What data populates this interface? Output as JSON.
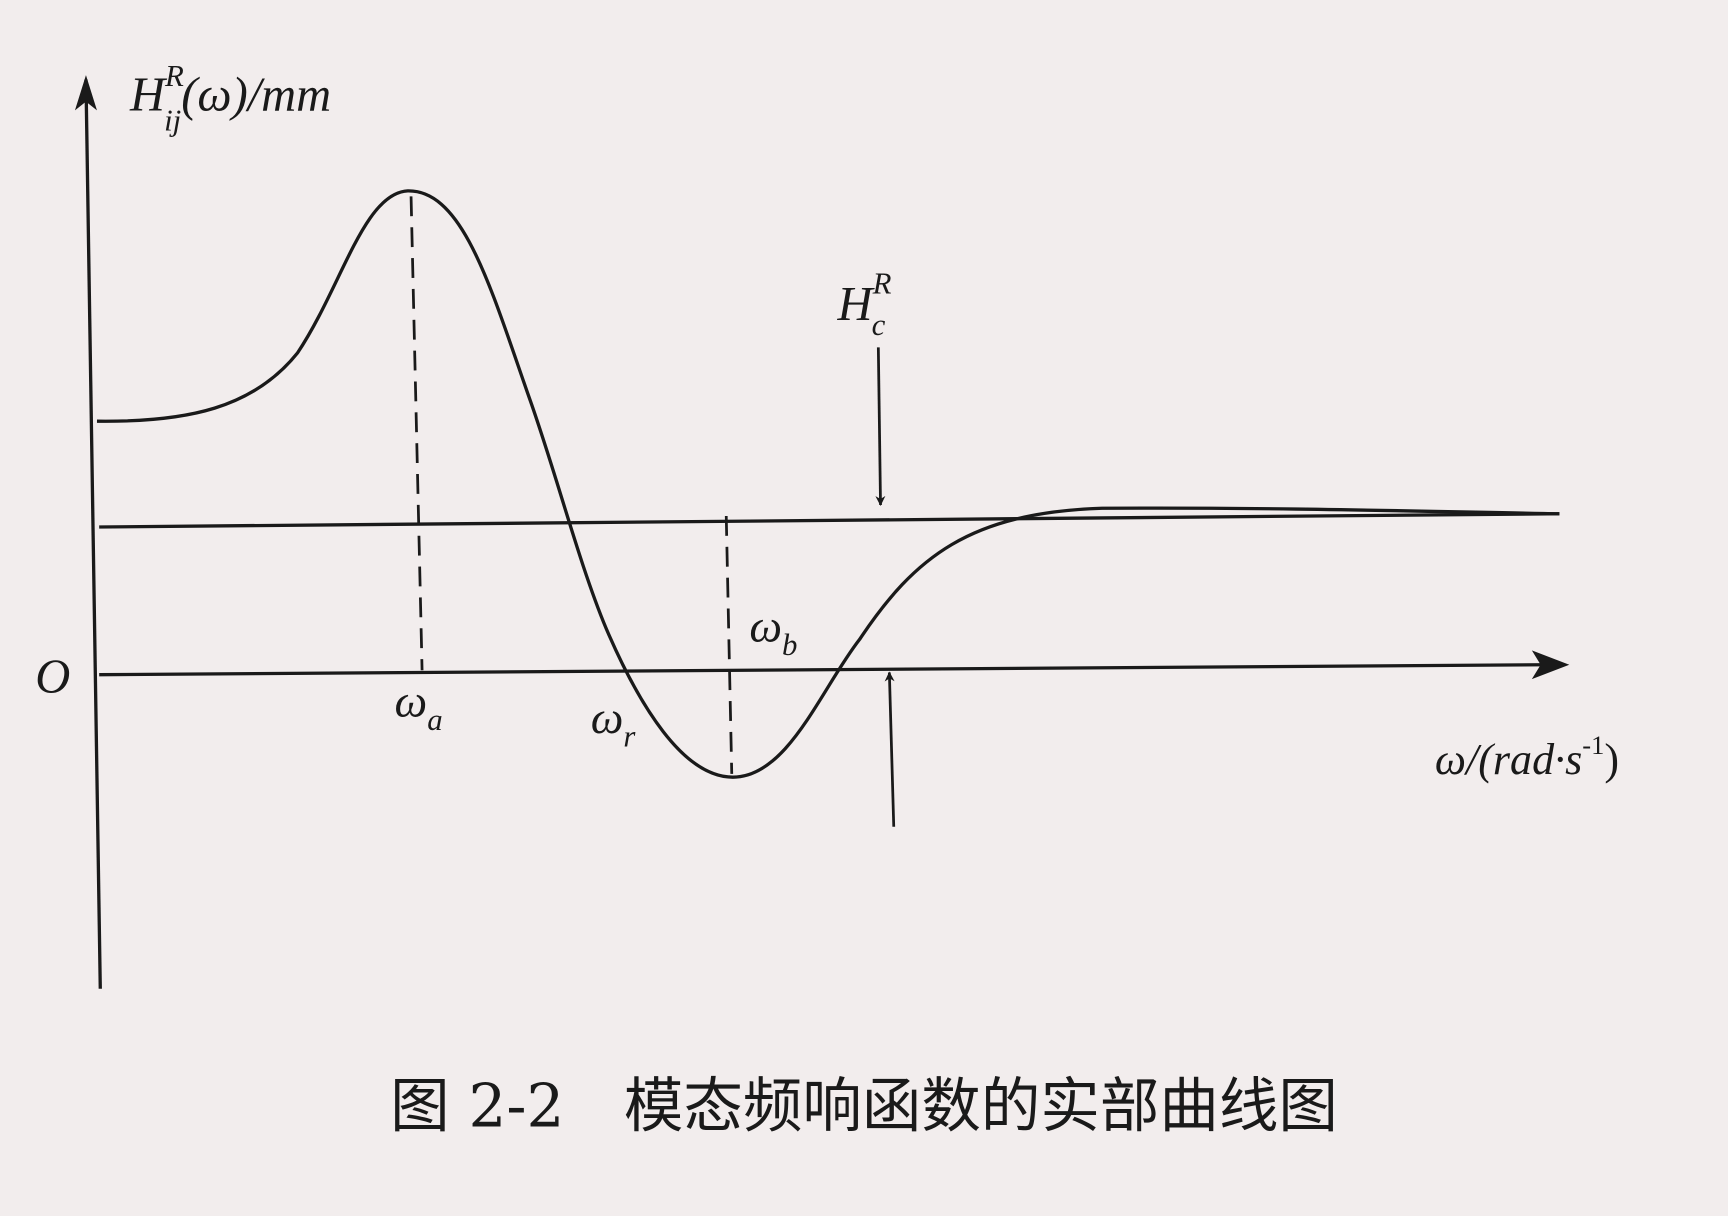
{
  "figure": {
    "y_axis_label": {
      "main": "H",
      "sup": "R",
      "sub": "ij",
      "rest": "(ω)/mm"
    },
    "x_axis_label": {
      "main": "ω/(rad·s",
      "sup": "-1",
      "close": ")"
    },
    "origin_label": "O",
    "omega_a": {
      "main": "ω",
      "sub": "a"
    },
    "omega_r": {
      "main": "ω",
      "sub": "r"
    },
    "omega_b": {
      "main": "ω",
      "sub": "b"
    },
    "hc_label": {
      "main": "H",
      "sup": "R",
      "sub": "c"
    },
    "caption": "图 2-2　模态频响函数的实部曲线图"
  },
  "colors": {
    "ink": "#1a1a1a",
    "paper": "#f2eded"
  }
}
